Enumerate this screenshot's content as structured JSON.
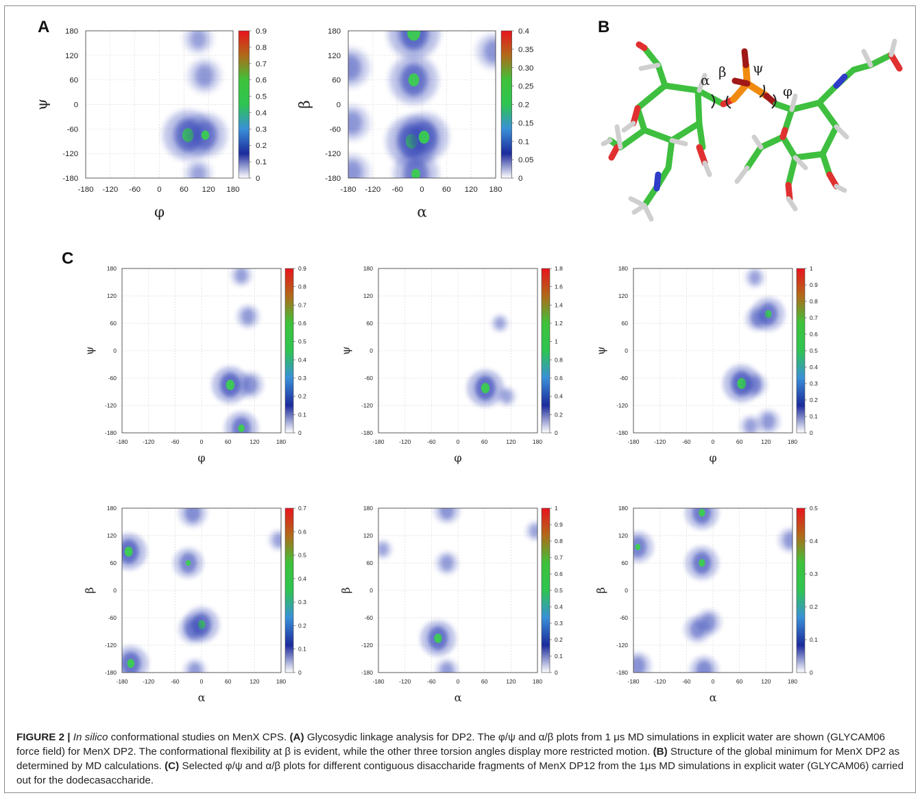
{
  "panels": {
    "a": "A",
    "b": "B",
    "c": "C"
  },
  "colorbar_colors": [
    "#ffffff",
    "#1c2b9c",
    "#3a8fd8",
    "#2ec452",
    "#3ec23a",
    "#b06a1a",
    "#e8141c"
  ],
  "density_color": "#3848b8",
  "core_color": "#39d24a",
  "chart_data": [
    {
      "id": "A1",
      "type": "heatmap",
      "xlabel": "φ",
      "ylabel": "ψ",
      "xlim": [
        -180,
        180
      ],
      "ylim": [
        -180,
        180
      ],
      "xticks": [
        "-180",
        "-120",
        "-60",
        "0",
        "60",
        "120",
        "180"
      ],
      "yticks": [
        "180",
        "120",
        "60",
        "0",
        "-60",
        "-120",
        "-180"
      ],
      "colorbar_ticks": [
        "0.9",
        "0.8",
        "0.7",
        "0.6",
        "0.5",
        "0.4",
        "0.3",
        "0.2",
        "0.1",
        "0"
      ],
      "colorbar_max": 0.9,
      "hotspots": [
        {
          "x": 70,
          "y": -75,
          "peak": 0.6
        },
        {
          "x": 112,
          "y": -75,
          "peak": 0.4
        },
        {
          "x": 110,
          "y": 70,
          "peak": 0.15
        },
        {
          "x": 95,
          "y": 160,
          "peak": 0.08
        },
        {
          "x": 95,
          "y": -170,
          "peak": 0.06
        }
      ]
    },
    {
      "id": "A2",
      "type": "heatmap",
      "xlabel": "α",
      "ylabel": "β",
      "xlim": [
        -180,
        180
      ],
      "ylim": [
        -180,
        180
      ],
      "xticks": [
        "-180",
        "-120",
        "-60",
        "0",
        "60",
        "120",
        "180"
      ],
      "yticks": [
        "180",
        "120",
        "60",
        "0",
        "-60",
        "-120",
        "-180"
      ],
      "colorbar_ticks": [
        "0.4",
        "0.35",
        "0.30",
        "0.25",
        "0.2",
        "0.15",
        "0.1",
        "0.05",
        "0"
      ],
      "colorbar_max": 0.4,
      "hotspots": [
        {
          "x": -20,
          "y": 175,
          "peak": 0.3
        },
        {
          "x": -20,
          "y": 60,
          "peak": 0.25
        },
        {
          "x": -25,
          "y": -90,
          "peak": 0.28
        },
        {
          "x": 5,
          "y": -80,
          "peak": 0.25
        },
        {
          "x": -175,
          "y": 90,
          "peak": 0.12
        },
        {
          "x": -170,
          "y": -45,
          "peak": 0.08
        },
        {
          "x": -170,
          "y": -165,
          "peak": 0.08
        },
        {
          "x": -15,
          "y": -170,
          "peak": 0.2
        },
        {
          "x": 175,
          "y": 130,
          "peak": 0.08
        }
      ]
    },
    {
      "id": "C1",
      "type": "heatmap",
      "xlabel": "φ",
      "ylabel": "ψ",
      "xlim": [
        -180,
        180
      ],
      "ylim": [
        -180,
        180
      ],
      "xticks": [
        "-180",
        "-120",
        "-60",
        "0",
        "60",
        "120",
        "180"
      ],
      "yticks": [
        "180",
        "120",
        "60",
        "0",
        "-60",
        "-120",
        "-180"
      ],
      "colorbar_ticks": [
        "0.9",
        "0.8",
        "0.7",
        "0.6",
        "0.5",
        "0.4",
        "0.3",
        "0.2",
        "0.1",
        "0"
      ],
      "colorbar_max": 0.9,
      "hotspots": [
        {
          "x": 65,
          "y": -75,
          "peak": 0.6
        },
        {
          "x": 110,
          "y": -75,
          "peak": 0.2
        },
        {
          "x": 90,
          "y": -170,
          "peak": 0.45
        },
        {
          "x": 105,
          "y": 75,
          "peak": 0.12
        },
        {
          "x": 90,
          "y": 165,
          "peak": 0.08
        }
      ]
    },
    {
      "id": "C2",
      "type": "heatmap",
      "xlabel": "φ",
      "ylabel": "ψ",
      "xlim": [
        -180,
        180
      ],
      "ylim": [
        -180,
        180
      ],
      "xticks": [
        "-180",
        "-120",
        "-60",
        "0",
        "60",
        "120",
        "180"
      ],
      "yticks": [
        "180",
        "120",
        "60",
        "0",
        "-60",
        "-120",
        "-180"
      ],
      "colorbar_ticks": [
        "1.8",
        "1.6",
        "1.4",
        "1.2",
        "1",
        "0.8",
        "0.6",
        "0.4",
        "0.2",
        "0"
      ],
      "colorbar_max": 1.8,
      "hotspots": [
        {
          "x": 62,
          "y": -82,
          "peak": 1.2
        },
        {
          "x": 95,
          "y": 60,
          "peak": 0.05
        },
        {
          "x": 110,
          "y": -100,
          "peak": 0.08
        }
      ]
    },
    {
      "id": "C3",
      "type": "heatmap",
      "xlabel": "φ",
      "ylabel": "ψ",
      "xlim": [
        -180,
        180
      ],
      "ylim": [
        -180,
        180
      ],
      "xticks": [
        "-180",
        "-120",
        "-60",
        "0",
        "60",
        "120",
        "180"
      ],
      "yticks": [
        "180",
        "120",
        "60",
        "0",
        "-60",
        "-120",
        "-180"
      ],
      "colorbar_ticks": [
        "1",
        "0.9",
        "0.8",
        "0.7",
        "0.6",
        "0.5",
        "0.4",
        "0.3",
        "0.2",
        "0.1",
        "0"
      ],
      "colorbar_max": 1.0,
      "hotspots": [
        {
          "x": 65,
          "y": -72,
          "peak": 0.7
        },
        {
          "x": 125,
          "y": 80,
          "peak": 0.5
        },
        {
          "x": 100,
          "y": 70,
          "peak": 0.15
        },
        {
          "x": 95,
          "y": -75,
          "peak": 0.15
        },
        {
          "x": 125,
          "y": -155,
          "peak": 0.15
        },
        {
          "x": 85,
          "y": -165,
          "peak": 0.08
        },
        {
          "x": 95,
          "y": 160,
          "peak": 0.06
        }
      ]
    },
    {
      "id": "C4",
      "type": "heatmap",
      "xlabel": "α",
      "ylabel": "β",
      "xlim": [
        -180,
        180
      ],
      "ylim": [
        -180,
        180
      ],
      "xticks": [
        "-180",
        "-120",
        "-60",
        "0",
        "60",
        "120",
        "180"
      ],
      "yticks": [
        "180",
        "120",
        "60",
        "0",
        "-60",
        "-120",
        "-180"
      ],
      "colorbar_ticks": [
        "0.7",
        "0.6",
        "0.5",
        "0.4",
        "0.3",
        "0.2",
        "0.1",
        "0"
      ],
      "colorbar_max": 0.7,
      "hotspots": [
        {
          "x": -165,
          "y": 85,
          "peak": 0.45
        },
        {
          "x": -160,
          "y": -160,
          "peak": 0.4
        },
        {
          "x": 0,
          "y": -75,
          "peak": 0.4
        },
        {
          "x": -20,
          "y": -85,
          "peak": 0.2
        },
        {
          "x": -30,
          "y": 60,
          "peak": 0.25
        },
        {
          "x": -20,
          "y": 170,
          "peak": 0.2
        },
        {
          "x": -15,
          "y": -175,
          "peak": 0.08
        },
        {
          "x": 175,
          "y": 110,
          "peak": 0.05
        }
      ]
    },
    {
      "id": "C5",
      "type": "heatmap",
      "xlabel": "α",
      "ylabel": "β",
      "xlim": [
        -180,
        180
      ],
      "ylim": [
        -180,
        180
      ],
      "xticks": [
        "-180",
        "-120",
        "-60",
        "0",
        "60",
        "120",
        "180"
      ],
      "yticks": [
        "180",
        "120",
        "60",
        "0",
        "-60",
        "-120",
        "-180"
      ],
      "colorbar_ticks": [
        "1",
        "0.9",
        "0.8",
        "0.7",
        "0.6",
        "0.5",
        "0.4",
        "0.3",
        "0.2",
        "0.1",
        "0"
      ],
      "colorbar_max": 1.0,
      "hotspots": [
        {
          "x": -45,
          "y": -105,
          "peak": 0.6
        },
        {
          "x": -25,
          "y": 175,
          "peak": 0.2
        },
        {
          "x": -25,
          "y": 60,
          "peak": 0.12
        },
        {
          "x": -25,
          "y": -175,
          "peak": 0.12
        },
        {
          "x": 175,
          "y": 130,
          "peak": 0.05
        },
        {
          "x": -170,
          "y": 90,
          "peak": 0.04
        }
      ]
    },
    {
      "id": "C6",
      "type": "heatmap",
      "xlabel": "α",
      "ylabel": "β",
      "xlim": [
        -180,
        180
      ],
      "ylim": [
        -180,
        180
      ],
      "xticks": [
        "-180",
        "-120",
        "-60",
        "0",
        "60",
        "120",
        "180"
      ],
      "yticks": [
        "180",
        "120",
        "60",
        "0",
        "-60",
        "-120",
        "-180"
      ],
      "colorbar_ticks": [
        "0.5",
        "0.4",
        "0.3",
        "0.2",
        "0.1",
        "0"
      ],
      "colorbar_max": 0.5,
      "hotspots": [
        {
          "x": -25,
          "y": 170,
          "peak": 0.25
        },
        {
          "x": -170,
          "y": 95,
          "peak": 0.2
        },
        {
          "x": -25,
          "y": 60,
          "peak": 0.25
        },
        {
          "x": -35,
          "y": -85,
          "peak": 0.12
        },
        {
          "x": -10,
          "y": -70,
          "peak": 0.1
        },
        {
          "x": -170,
          "y": -165,
          "peak": 0.12
        },
        {
          "x": -20,
          "y": -175,
          "peak": 0.15
        },
        {
          "x": 175,
          "y": 110,
          "peak": 0.08
        }
      ]
    }
  ],
  "molecule": {
    "angle_labels": {
      "alpha": "α",
      "beta": "β",
      "psi": "ψ",
      "phi": "φ"
    }
  },
  "caption": {
    "figure_label": "FIGURE 2 |",
    "title_italic": "In silico",
    "title_rest": " conformational studies on MenX CPS.",
    "a_label": "(A)",
    "a_text": " Glycosydic linkage analysis for DP2. The φ/ψ and α/β plots from 1 μs MD simulations in explicit water are shown (GLYCAM06 force field) for MenX DP2. The conformational flexibility at β is evident, while the other three torsion angles display more restricted motion.",
    "b_label": "(B)",
    "b_text": " Structure of the global minimum for MenX DP2 as determined by MD calculations.",
    "c_label": "(C)",
    "c_text": " Selected φ/ψ and α/β plots for different contiguous disaccharide fragments of MenX DP12 from the 1μs MD simulations in explicit water (GLYCAM06) carried out for the dodecasaccharide."
  }
}
